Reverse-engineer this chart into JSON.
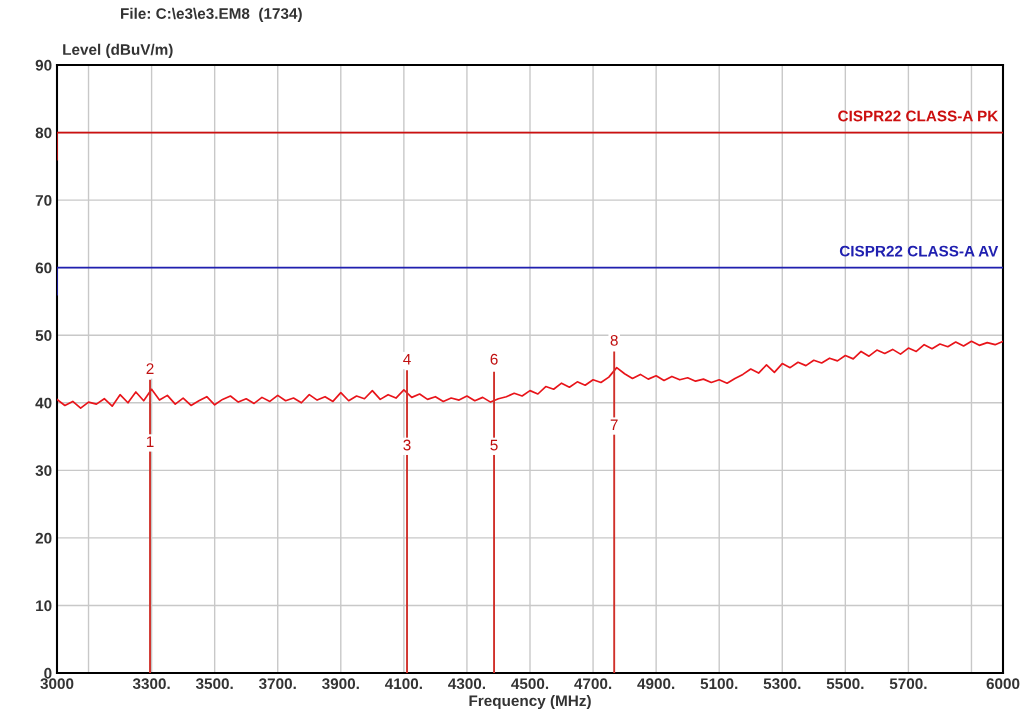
{
  "chart_data": {
    "type": "line",
    "title": "File: C:\\e3\\e3.EM8  (1734)",
    "xlabel": "Frequency (MHz)",
    "ylabel": "Level (dBuV/m)",
    "xlim": [
      3000,
      6000
    ],
    "ylim": [
      0,
      90
    ],
    "xticks": [
      3000,
      {
        "value": 3100,
        "label": null
      },
      {
        "value": 3300,
        "label": "3300."
      },
      {
        "value": 3500,
        "label": "3500."
      },
      {
        "value": 3700,
        "label": "3700."
      },
      {
        "value": 3900,
        "label": "3900."
      },
      {
        "value": 4100,
        "label": "4100."
      },
      {
        "value": 4300,
        "label": "4300."
      },
      {
        "value": 4500,
        "label": "4500."
      },
      {
        "value": 4700,
        "label": "4700."
      },
      {
        "value": 4900,
        "label": "4900."
      },
      {
        "value": 5100,
        "label": "5100."
      },
      {
        "value": 5300,
        "label": "5300."
      },
      {
        "value": 5500,
        "label": "5500."
      },
      {
        "value": 5700,
        "label": "5700."
      },
      {
        "value": 5900,
        "label": null
      },
      6000
    ],
    "yticks": [
      0,
      10,
      20,
      30,
      40,
      50,
      60,
      70,
      80,
      90
    ],
    "grid": true,
    "series": [
      {
        "color": "#e8141a",
        "x": [
          3000,
          3025,
          3050,
          3075,
          3100,
          3125,
          3150,
          3175,
          3200,
          3225,
          3250,
          3275,
          3300,
          3325,
          3350,
          3375,
          3400,
          3425,
          3450,
          3475,
          3500,
          3525,
          3550,
          3575,
          3600,
          3625,
          3650,
          3675,
          3700,
          3725,
          3750,
          3775,
          3800,
          3825,
          3850,
          3875,
          3900,
          3925,
          3950,
          3975,
          4000,
          4025,
          4050,
          4075,
          4100,
          4125,
          4150,
          4175,
          4200,
          4225,
          4250,
          4275,
          4300,
          4325,
          4350,
          4375,
          4400,
          4425,
          4450,
          4475,
          4500,
          4525,
          4550,
          4575,
          4600,
          4625,
          4650,
          4675,
          4700,
          4725,
          4750,
          4775,
          4800,
          4825,
          4850,
          4875,
          4900,
          4925,
          4950,
          4975,
          5000,
          5025,
          5050,
          5075,
          5100,
          5125,
          5150,
          5175,
          5200,
          5225,
          5250,
          5275,
          5300,
          5325,
          5350,
          5375,
          5400,
          5425,
          5450,
          5475,
          5500,
          5525,
          5550,
          5575,
          5600,
          5625,
          5650,
          5675,
          5700,
          5725,
          5750,
          5775,
          5800,
          5825,
          5850,
          5875,
          5900,
          5925,
          5950,
          5975,
          6000
        ],
        "values": [
          40.5,
          39.6,
          40.2,
          39.2,
          40.1,
          39.8,
          40.6,
          39.5,
          41.2,
          40.0,
          41.6,
          40.3,
          42.0,
          40.4,
          41.1,
          39.8,
          40.7,
          39.6,
          40.3,
          40.9,
          39.7,
          40.5,
          41.0,
          40.1,
          40.6,
          39.9,
          40.8,
          40.2,
          41.1,
          40.3,
          40.7,
          40.0,
          41.2,
          40.4,
          40.9,
          40.2,
          41.5,
          40.3,
          41.0,
          40.6,
          41.8,
          40.5,
          41.2,
          40.7,
          41.9,
          40.8,
          41.3,
          40.5,
          40.9,
          40.2,
          40.7,
          40.4,
          41.0,
          40.3,
          40.8,
          40.1,
          40.6,
          40.9,
          41.4,
          41.0,
          41.8,
          41.3,
          42.4,
          42.0,
          42.9,
          42.3,
          43.1,
          42.6,
          43.4,
          43.0,
          43.8,
          45.2,
          44.3,
          43.6,
          44.2,
          43.5,
          44.0,
          43.3,
          43.9,
          43.4,
          43.7,
          43.2,
          43.5,
          43.0,
          43.4,
          42.9,
          43.6,
          44.2,
          45.0,
          44.4,
          45.6,
          44.5,
          45.8,
          45.2,
          46.0,
          45.5,
          46.3,
          45.9,
          46.6,
          46.2,
          47.0,
          46.5,
          47.6,
          46.9,
          47.8,
          47.3,
          47.9,
          47.2,
          48.1,
          47.6,
          48.6,
          48.0,
          48.7,
          48.3,
          49.0,
          48.4,
          49.1,
          48.5,
          48.9,
          48.6,
          49.1
        ]
      },
      {
        "type": "bar",
        "color": "#d0302a",
        "x": [
          3295,
          4110,
          4386,
          4767
        ],
        "values": [
          43.4,
          44.8,
          44.6,
          47.6
        ]
      },
      {
        "type": "line",
        "name": "CISPR22 CLASS-A PK",
        "color": "#cc1010",
        "x": [
          3000,
          3000,
          6000
        ],
        "values": [
          76,
          80,
          80
        ]
      },
      {
        "type": "line",
        "name": "CISPR22 CLASS-A AV",
        "color": "#2020b0",
        "x": [
          3000,
          3000,
          6000
        ],
        "values": [
          56,
          60,
          60
        ]
      }
    ],
    "annotations": [
      {
        "text": "1",
        "x": 3295,
        "y": 33
      },
      {
        "text": "2",
        "x": 3295,
        "y": 43.8
      },
      {
        "text": "3",
        "x": 4110,
        "y": 32.5
      },
      {
        "text": "4",
        "x": 4110,
        "y": 45.2
      },
      {
        "text": "5",
        "x": 4386,
        "y": 32.5
      },
      {
        "text": "6",
        "x": 4386,
        "y": 45.2
      },
      {
        "text": "7",
        "x": 4767,
        "y": 35.5
      },
      {
        "text": "8",
        "x": 4767,
        "y": 48.0
      }
    ]
  }
}
